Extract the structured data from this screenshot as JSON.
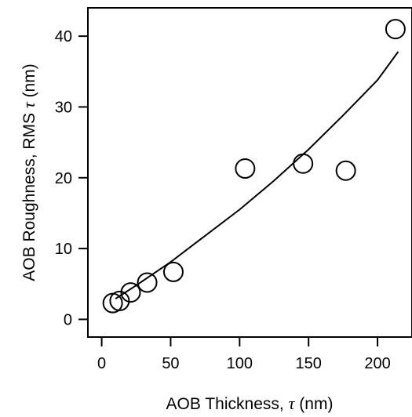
{
  "chart_data": {
    "type": "scatter",
    "title": "",
    "xlabel": {
      "prefix": "AOB Thickness, ",
      "symbol": "τ",
      "suffix": " (nm)"
    },
    "ylabel": {
      "prefix": "AOB Roughness, RMS ",
      "symbol": "τ",
      "suffix": " (nm)"
    },
    "xlim": [
      -10,
      225
    ],
    "ylim": [
      -2.5,
      44
    ],
    "x_ticks": [
      0,
      50,
      100,
      150,
      200
    ],
    "y_ticks": [
      0,
      10,
      20,
      30,
      40
    ],
    "x_tick_labels": [
      "0",
      "50",
      "100",
      "150",
      "200"
    ],
    "y_tick_labels": [
      "0",
      "10",
      "20",
      "30",
      "40"
    ],
    "grid": false,
    "points": [
      {
        "x": 8,
        "y": 2.3
      },
      {
        "x": 13,
        "y": 2.6
      },
      {
        "x": 21,
        "y": 3.8
      },
      {
        "x": 33,
        "y": 5.2
      },
      {
        "x": 52,
        "y": 6.7
      },
      {
        "x": 104,
        "y": 21.3
      },
      {
        "x": 146,
        "y": 22.0
      },
      {
        "x": 177,
        "y": 21.0
      },
      {
        "x": 213,
        "y": 41.0
      }
    ],
    "fit_curve": {
      "x": [
        10,
        25,
        50,
        75,
        100,
        125,
        150,
        175,
        200,
        215
      ],
      "y": [
        2.9,
        4.8,
        8.1,
        11.8,
        15.5,
        19.6,
        24.0,
        28.8,
        33.8,
        37.8
      ]
    }
  }
}
